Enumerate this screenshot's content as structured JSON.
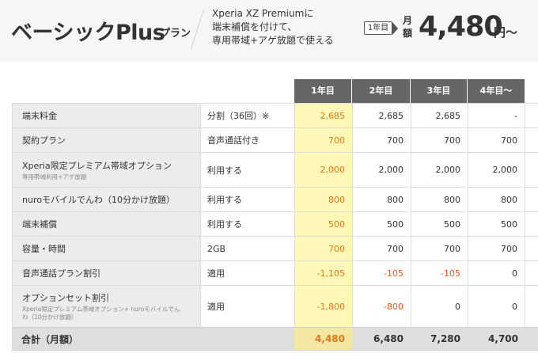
{
  "header": {
    "title": "ベーシックPlus",
    "title_suffix": "プラン",
    "description": [
      "Xperia XZ Premiumに",
      "端末補償を付けて、",
      "専用帯域+アゲ放題で使える"
    ],
    "year_badge": "1年目",
    "monthly_label": "月額",
    "price": "4,480",
    "price_unit": "円〜"
  },
  "table": {
    "columns": [
      "1年目",
      "2年目",
      "3年目",
      "4年目〜"
    ],
    "rows": [
      {
        "label": "端末料金",
        "sub": "",
        "detail": "分割（36回）※",
        "values": [
          "2,685",
          "2,685",
          "2,685",
          "-"
        ]
      },
      {
        "label": "契約プラン",
        "sub": "",
        "detail": "音声通話付き",
        "values": [
          "700",
          "700",
          "700",
          "700"
        ]
      },
      {
        "label": "Xperia限定プレミアム帯域オプション",
        "sub": "専用帯域利用+アゲ放題",
        "detail": "利用する",
        "values": [
          "2,000",
          "2,000",
          "2,000",
          "2,000"
        ]
      },
      {
        "label": "nuroモバイルでんわ（10分かけ放題）",
        "sub": "",
        "detail": "利用する",
        "values": [
          "800",
          "800",
          "800",
          "800"
        ]
      },
      {
        "label": "端末補償",
        "sub": "",
        "detail": "利用する",
        "values": [
          "500",
          "500",
          "500",
          "500"
        ]
      },
      {
        "label": "容量・時間",
        "sub": "",
        "detail": "2GB",
        "values": [
          "700",
          "700",
          "700",
          "700"
        ]
      },
      {
        "label": "音声通話プラン割引",
        "sub": "",
        "detail": "適用",
        "values": [
          "-1,105",
          "-105",
          "-105",
          "0"
        ]
      },
      {
        "label": "オプションセット割引",
        "sub": "Xperia限定プレミアム帯域オプション+ nuroモバイルでんわ（10分かけ放題）",
        "detail": "適用",
        "values": [
          "-1,800",
          "-800",
          "0",
          "0"
        ]
      }
    ],
    "total": {
      "label": "合計（月額）",
      "values": [
        "4,480",
        "6,480",
        "7,280",
        "4,700"
      ]
    }
  },
  "colors": {
    "header_bg": "#f6f6f6",
    "column_header_bg": "#666666",
    "highlight_year1": "#fff8b6",
    "year1_text": "#e07a1a",
    "negative_text": "#e05a1a",
    "label_bg": "#ececec",
    "total_bg": "#dedede"
  }
}
